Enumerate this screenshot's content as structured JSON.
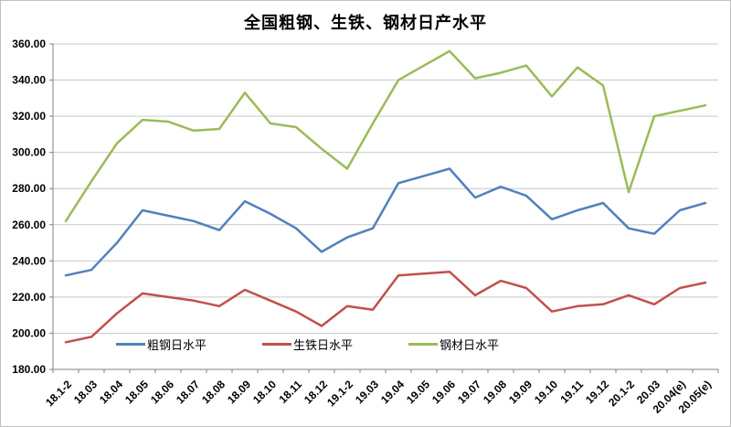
{
  "title": "全国粗钢、生铁、钢材日产水平",
  "chart_data": {
    "type": "line",
    "categories": [
      "18.1-2",
      "18.03",
      "18.04",
      "18.05",
      "18.06",
      "18.07",
      "18.08",
      "18.09",
      "18.10",
      "18.11",
      "18.12",
      "19.1-2",
      "19.03",
      "19.04",
      "19.05",
      "19.06",
      "19.07",
      "19.08",
      "19.09",
      "19.10",
      "19.11",
      "19.12",
      "20.1-2",
      "20.03",
      "20.04(e)",
      "20.05(e)"
    ],
    "series": [
      {
        "name": "粗钢日水平",
        "color": "#4F81BD",
        "values": [
          232,
          235,
          250,
          268,
          265,
          262,
          257,
          273,
          266,
          258,
          245,
          253,
          258,
          283,
          287,
          291,
          275,
          281,
          276,
          263,
          268,
          272,
          258,
          255,
          268,
          272
        ]
      },
      {
        "name": "生铁日水平",
        "color": "#C0504D",
        "values": [
          195,
          198,
          211,
          222,
          220,
          218,
          215,
          224,
          218,
          212,
          204,
          215,
          213,
          232,
          233,
          234,
          221,
          229,
          225,
          212,
          215,
          216,
          221,
          216,
          225,
          228
        ]
      },
      {
        "name": "钢材日水平",
        "color": "#9BBB59",
        "values": [
          262,
          284,
          305,
          318,
          317,
          312,
          313,
          333,
          316,
          314,
          302,
          291,
          316,
          340,
          348,
          356,
          341,
          344,
          348,
          331,
          347,
          337,
          278,
          320,
          323,
          326
        ]
      }
    ],
    "ylim": [
      180,
      360
    ],
    "ytick_interval": 20,
    "ytick_labels": [
      "180.00",
      "200.00",
      "220.00",
      "240.00",
      "260.00",
      "280.00",
      "300.00",
      "320.00",
      "340.00",
      "360.00"
    ],
    "grid": true,
    "legend_position": "bottom-inside",
    "colors": {
      "gridline": "#c9c9c9",
      "axis": "#808080",
      "background": "#ffffff"
    }
  }
}
